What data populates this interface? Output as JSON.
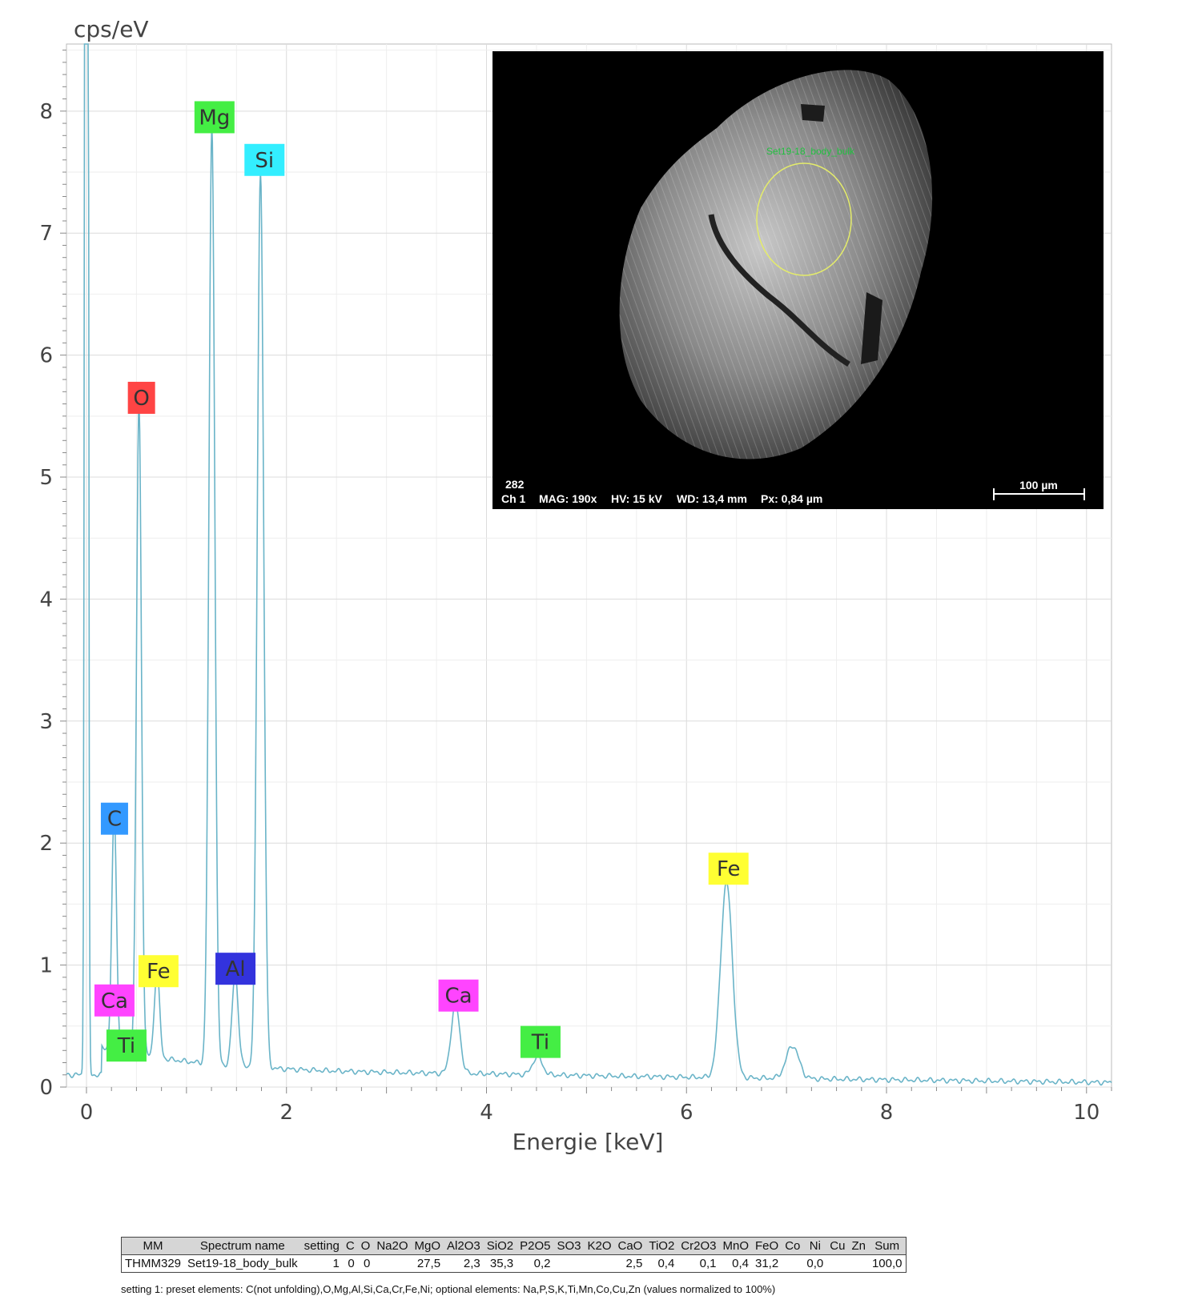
{
  "chart_data": {
    "type": "line",
    "ylabel": "cps/eV",
    "xlabel": "Energie [keV]",
    "xlim": [
      -0.2,
      10.25
    ],
    "ylim": [
      0,
      8.55
    ],
    "x_ticks": [
      0,
      2,
      4,
      6,
      8,
      10
    ],
    "y_ticks": [
      0,
      1,
      2,
      3,
      4,
      5,
      6,
      7,
      8
    ],
    "grid": true,
    "line_color": "#6ab4c8",
    "background_level": 0.1,
    "peaks": [
      {
        "element": "C",
        "energy": 0.277,
        "height": 1.95
      },
      {
        "element": "O",
        "energy": 0.525,
        "height": 5.35
      },
      {
        "element": "Fe",
        "energy": 0.705,
        "height": 0.72
      },
      {
        "element": "Mg",
        "energy": 1.254,
        "height": 7.7
      },
      {
        "element": "Al",
        "energy": 1.487,
        "height": 0.76
      },
      {
        "element": "Si",
        "energy": 1.74,
        "height": 7.35
      },
      {
        "element": "Ca",
        "energy": 3.69,
        "height": 0.57
      },
      {
        "element": "Ti",
        "energy": 4.51,
        "height": 0.15
      },
      {
        "element": "Fe",
        "energy": 6.4,
        "height": 1.6
      },
      {
        "element": "Fe",
        "energy": 7.06,
        "height": 0.27
      }
    ],
    "element_labels": [
      {
        "text": "Mg",
        "energy": 1.28,
        "y": 7.95,
        "color": "#44ee44"
      },
      {
        "text": "Si",
        "energy": 1.78,
        "y": 7.6,
        "color": "#33eeff"
      },
      {
        "text": "O",
        "energy": 0.55,
        "y": 5.65,
        "color": "#ff4444"
      },
      {
        "text": "C",
        "energy": 0.28,
        "y": 2.2,
        "color": "#3399ff"
      },
      {
        "text": "Fe",
        "energy": 0.72,
        "y": 0.95,
        "color": "#ffff33"
      },
      {
        "text": "Al",
        "energy": 1.49,
        "y": 0.97,
        "color": "#3333dd"
      },
      {
        "text": "Ca",
        "energy": 0.28,
        "y": 0.71,
        "color": "#ff44ff"
      },
      {
        "text": "Ti",
        "energy": 0.4,
        "y": 0.34,
        "color": "#44ee44"
      },
      {
        "text": "Ca",
        "energy": 3.72,
        "y": 0.75,
        "color": "#ff44ff"
      },
      {
        "text": "Ti",
        "energy": 4.54,
        "y": 0.37,
        "color": "#44ee44"
      },
      {
        "text": "Fe",
        "energy": 6.42,
        "y": 1.79,
        "color": "#ffff33"
      }
    ]
  },
  "sem_image": {
    "label_number": "282",
    "label_channel": "Ch 1",
    "label_mag": "MAG: 190x",
    "label_hv": "HV: 15 kV",
    "label_wd": "WD: 13,4 mm",
    "label_px": "Px: 0,84 µm",
    "scale_bar": "100 µm",
    "roi_label": "Set19-18_body_bulk"
  },
  "table": {
    "headers": [
      "MM",
      "Spectrum name",
      "setting",
      "C",
      "O",
      "Na2O",
      "MgO",
      "Al2O3",
      "SiO2",
      "P2O5",
      "SO3",
      "K2O",
      "CaO",
      "TiO2",
      "Cr2O3",
      "MnO",
      "FeO",
      "Co",
      "Ni",
      "Cu",
      "Zn",
      "Sum"
    ],
    "row": [
      "THMM329",
      "Set19-18_body_bulk",
      "1",
      "0",
      "0",
      "",
      "27,5",
      "2,3",
      "35,3",
      "0,2",
      "",
      "",
      "2,5",
      "0,4",
      "0,1",
      "0,4",
      "31,2",
      "",
      "0,0",
      "",
      "",
      "100,0"
    ]
  },
  "footnote": "setting 1: preset elements: C(not unfolding),O,Mg,Al,Si,Ca,Cr,Fe,Ni; optional elements: Na,P,S,K,Ti,Mn,Co,Cu,Zn (values normalized to 100%)"
}
